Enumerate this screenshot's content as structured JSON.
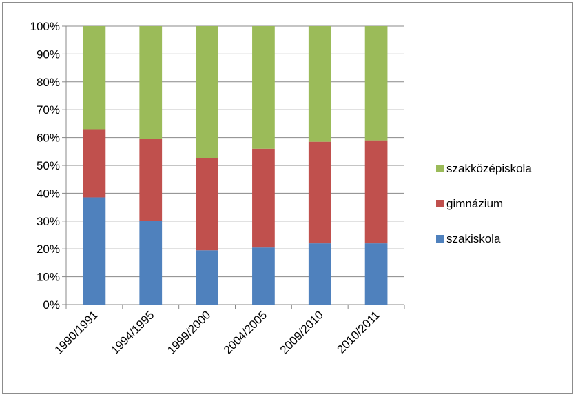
{
  "chart_data": {
    "type": "bar",
    "stacked": "percent",
    "categories": [
      "1990/1991",
      "1994/1995",
      "1999/2000",
      "2004/2005",
      "2009/2010",
      "2010/2011"
    ],
    "series": [
      {
        "name": "szakiskola",
        "color": "#4f81bd",
        "values": [
          38.5,
          30.0,
          19.5,
          20.5,
          22.0,
          22.0
        ]
      },
      {
        "name": "gimnázium",
        "color": "#c0504d",
        "values": [
          24.5,
          29.5,
          33.0,
          35.5,
          36.5,
          37.0
        ]
      },
      {
        "name": "szakközépiskola",
        "color": "#9bbb59",
        "values": [
          37.0,
          40.5,
          47.5,
          44.0,
          41.5,
          41.0
        ]
      }
    ],
    "yticks": [
      "0%",
      "10%",
      "20%",
      "30%",
      "40%",
      "50%",
      "60%",
      "70%",
      "80%",
      "90%",
      "100%"
    ],
    "ylim": [
      0,
      100
    ],
    "grid": true,
    "legend_position": "right",
    "legend_order": [
      "szakközépiskola",
      "gimnázium",
      "szakiskola"
    ],
    "title": "",
    "xlabel": "",
    "ylabel": ""
  }
}
